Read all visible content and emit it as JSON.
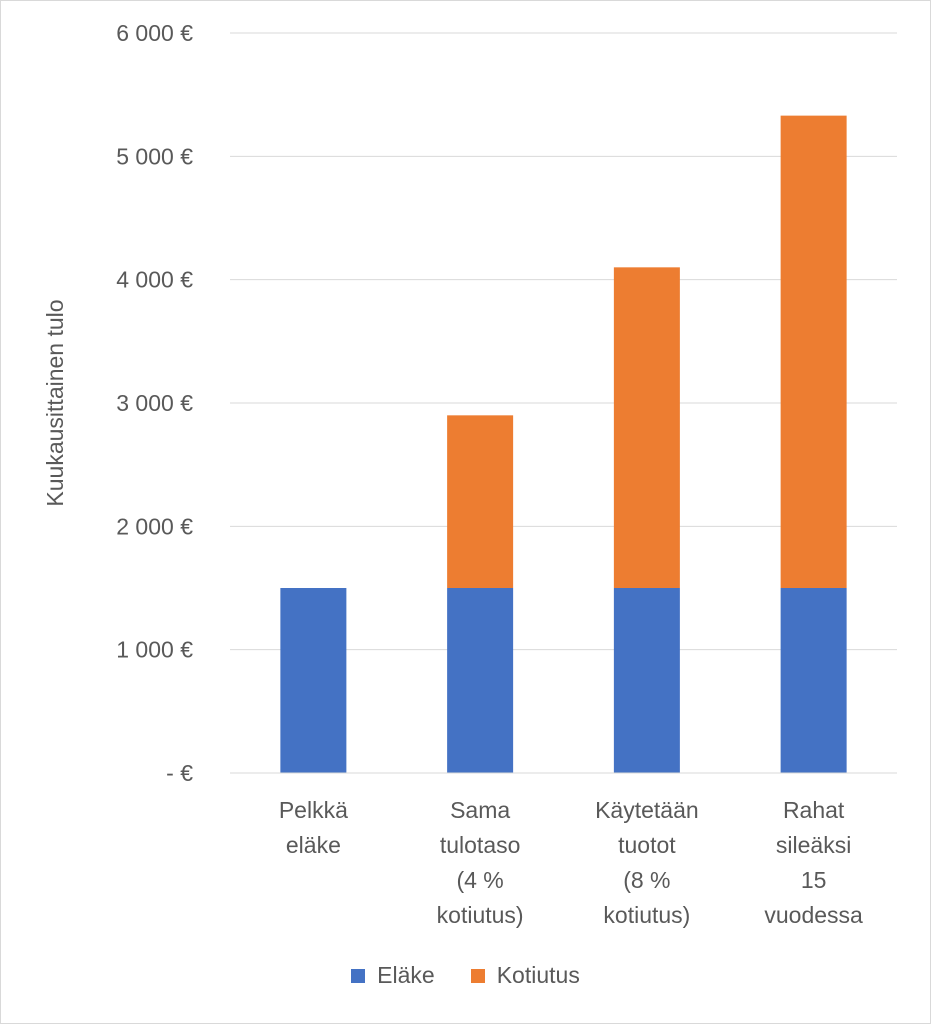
{
  "chart_data": {
    "type": "bar",
    "stacked": true,
    "categories": [
      [
        "Pelkkä",
        "eläke"
      ],
      [
        "Sama",
        "tulotaso",
        "(4 %",
        "kotiutus)"
      ],
      [
        "Käytetään",
        "tuotot",
        "(8 %",
        "kotiutus)"
      ],
      [
        "Rahat",
        "sileäksi",
        "15",
        "vuodessa"
      ]
    ],
    "series": [
      {
        "name": "Eläke",
        "color": "#4472C4",
        "values": [
          1500,
          1500,
          1500,
          1500
        ]
      },
      {
        "name": "Kotiutus",
        "color": "#ED7D31",
        "values": [
          0,
          1400,
          2600,
          3830
        ]
      }
    ],
    "ylabel": "Kuukausittainen tulo",
    "ylim": [
      0,
      6000
    ],
    "yticks": [
      0,
      1000,
      2000,
      3000,
      4000,
      5000,
      6000
    ],
    "ytick_labels": [
      "-   €",
      "1 000 €",
      "2 000 €",
      "3 000 €",
      "4 000 €",
      "5 000 €",
      "6 000 €"
    ],
    "grid": true,
    "legend_position": "bottom"
  }
}
